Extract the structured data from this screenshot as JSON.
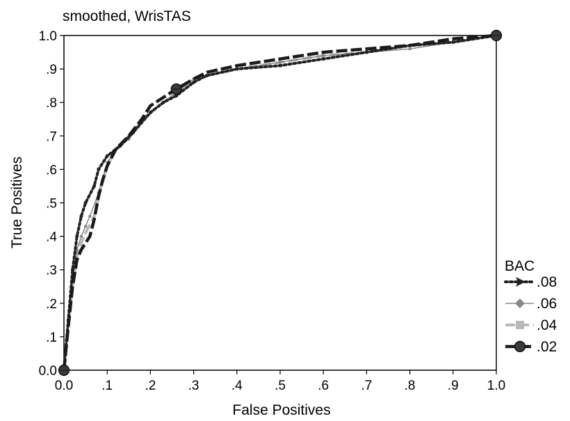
{
  "chart_data": {
    "type": "line",
    "title": "smoothed, WrisTAS",
    "xlabel": "False Positives",
    "ylabel": "True Positives",
    "xlim": [
      0,
      1
    ],
    "ylim": [
      0,
      1
    ],
    "x_ticks": [
      "0.0",
      ".1",
      ".2",
      ".3",
      ".4",
      ".5",
      ".6",
      ".7",
      ".8",
      ".9",
      "1.0"
    ],
    "y_ticks": [
      "0.0",
      ".1",
      ".2",
      ".3",
      ".4",
      ".5",
      ".6",
      ".7",
      ".8",
      ".9",
      "1.0"
    ],
    "grid": false,
    "legend": {
      "title": "BAC",
      "placement": "right"
    },
    "series": [
      {
        "name": ".08",
        "color": "#222222",
        "style": "dotted",
        "marker": "arrow",
        "points": [
          [
            0,
            0
          ],
          [
            0.01,
            0.15
          ],
          [
            0.02,
            0.3
          ],
          [
            0.03,
            0.4
          ],
          [
            0.04,
            0.46
          ],
          [
            0.05,
            0.5
          ],
          [
            0.07,
            0.55
          ],
          [
            0.08,
            0.6
          ],
          [
            0.1,
            0.64
          ],
          [
            0.13,
            0.67
          ],
          [
            0.16,
            0.71
          ],
          [
            0.2,
            0.77
          ],
          [
            0.23,
            0.8
          ],
          [
            0.26,
            0.82
          ],
          [
            0.3,
            0.86
          ],
          [
            0.33,
            0.88
          ],
          [
            0.4,
            0.9
          ],
          [
            0.5,
            0.91
          ],
          [
            0.6,
            0.93
          ],
          [
            0.7,
            0.95
          ],
          [
            0.8,
            0.97
          ],
          [
            0.9,
            0.98
          ],
          [
            1,
            1
          ]
        ]
      },
      {
        "name": ".06",
        "color": "#888888",
        "style": "solid",
        "marker": "diamond",
        "points": [
          [
            0,
            0
          ],
          [
            0.01,
            0.15
          ],
          [
            0.02,
            0.27
          ],
          [
            0.03,
            0.36
          ],
          [
            0.04,
            0.4
          ],
          [
            0.05,
            0.43
          ],
          [
            0.06,
            0.46
          ],
          [
            0.08,
            0.53
          ],
          [
            0.1,
            0.62
          ],
          [
            0.12,
            0.66
          ],
          [
            0.15,
            0.69
          ],
          [
            0.18,
            0.74
          ],
          [
            0.22,
            0.79
          ],
          [
            0.26,
            0.83
          ],
          [
            0.3,
            0.87
          ],
          [
            0.33,
            0.88
          ],
          [
            0.4,
            0.9
          ],
          [
            0.5,
            0.92
          ],
          [
            0.6,
            0.94
          ],
          [
            0.7,
            0.95
          ],
          [
            0.8,
            0.96
          ],
          [
            0.9,
            0.98
          ],
          [
            1,
            1
          ]
        ]
      },
      {
        "name": ".04",
        "color": "#b8b8b8",
        "style": "dashed",
        "marker": "square",
        "points": [
          [
            0,
            0
          ],
          [
            0.01,
            0.13
          ],
          [
            0.02,
            0.25
          ],
          [
            0.03,
            0.34
          ],
          [
            0.04,
            0.38
          ],
          [
            0.05,
            0.41
          ],
          [
            0.07,
            0.46
          ],
          [
            0.08,
            0.52
          ],
          [
            0.1,
            0.61
          ],
          [
            0.12,
            0.66
          ],
          [
            0.15,
            0.7
          ],
          [
            0.19,
            0.76
          ],
          [
            0.22,
            0.79
          ],
          [
            0.26,
            0.83
          ],
          [
            0.3,
            0.87
          ],
          [
            0.33,
            0.88
          ],
          [
            0.4,
            0.9
          ],
          [
            0.5,
            0.92
          ],
          [
            0.6,
            0.94
          ],
          [
            0.7,
            0.95
          ],
          [
            0.8,
            0.97
          ],
          [
            0.9,
            0.98
          ],
          [
            1,
            1
          ]
        ]
      },
      {
        "name": ".02",
        "color": "#1a1a1a",
        "style": "dashed-thick",
        "marker": "circle",
        "points": [
          [
            0,
            0
          ],
          [
            0.01,
            0.13
          ],
          [
            0.02,
            0.25
          ],
          [
            0.03,
            0.33
          ],
          [
            0.04,
            0.36
          ],
          [
            0.06,
            0.4
          ],
          [
            0.07,
            0.45
          ],
          [
            0.08,
            0.52
          ],
          [
            0.09,
            0.57
          ],
          [
            0.1,
            0.61
          ],
          [
            0.12,
            0.66
          ],
          [
            0.15,
            0.7
          ],
          [
            0.18,
            0.75
          ],
          [
            0.2,
            0.79
          ],
          [
            0.26,
            0.84
          ],
          [
            0.3,
            0.87
          ],
          [
            0.33,
            0.89
          ],
          [
            0.4,
            0.91
          ],
          [
            0.5,
            0.93
          ],
          [
            0.6,
            0.95
          ],
          [
            0.7,
            0.96
          ],
          [
            0.8,
            0.97
          ],
          [
            0.9,
            0.99
          ],
          [
            1,
            1
          ]
        ]
      }
    ]
  }
}
